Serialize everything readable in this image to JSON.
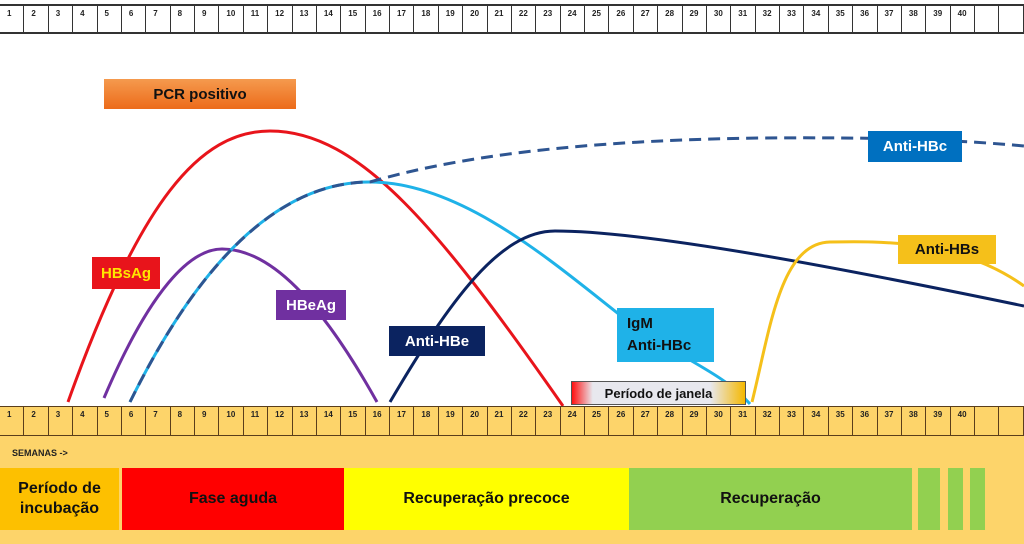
{
  "top_ruler": {
    "weeks": [
      "1",
      "2",
      "3",
      "4",
      "5",
      "6",
      "7",
      "8",
      "9",
      "10",
      "11",
      "12",
      "13",
      "14",
      "15",
      "16",
      "17",
      "18",
      "19",
      "20",
      "21",
      "22",
      "23",
      "24",
      "25",
      "26",
      "27",
      "28",
      "29",
      "30",
      "31",
      "32",
      "33",
      "34",
      "35",
      "36",
      "37",
      "38",
      "39",
      "40",
      "",
      ""
    ]
  },
  "bottom_ruler": {
    "weeks": [
      "1",
      "2",
      "3",
      "4",
      "5",
      "6",
      "7",
      "8",
      "9",
      "10",
      "11",
      "12",
      "13",
      "14",
      "15",
      "16",
      "17",
      "18",
      "19",
      "20",
      "21",
      "22",
      "23",
      "24",
      "25",
      "26",
      "27",
      "28",
      "29",
      "30",
      "31",
      "32",
      "33",
      "34",
      "35",
      "36",
      "37",
      "38",
      "39",
      "40",
      "",
      ""
    ]
  },
  "axis_label": "SEMANAS ->",
  "labels": {
    "pcr": "PCR positivo",
    "hbsag": "HBsAg",
    "hbeag": "HBeAg",
    "anti_hbe": "Anti-HBe",
    "igm_line1": "IgM",
    "igm_line2": "Anti-HBc",
    "anti_hbc": "Anti-HBc",
    "anti_hbs": "Anti-HBs",
    "janela": "Período de janela"
  },
  "phases": [
    {
      "label": "Período de incubação",
      "color": "#fdc000"
    },
    {
      "label": "Fase aguda",
      "color": "#ff0000"
    },
    {
      "label": "Recuperação precoce",
      "color": "#ffff00"
    },
    {
      "label": "Recuperação",
      "color": "#92d050"
    }
  ],
  "colors": {
    "hbsag": "#e8141b",
    "hbeag": "#7030a0",
    "igm": "#1fb2e8",
    "anti_hbc": "#2e5591",
    "anti_hbe": "#0b2360",
    "anti_hbs": "#f5c01a",
    "pcr": "#f07a24",
    "band": "#fdd46a"
  }
}
